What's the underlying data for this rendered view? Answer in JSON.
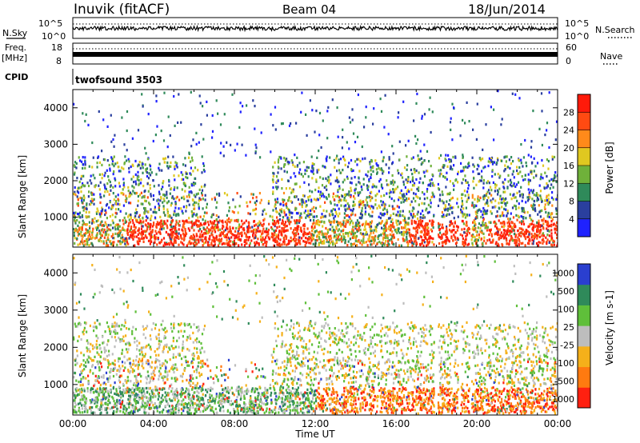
{
  "header": {
    "station": "Inuvik (fitACF)",
    "beam": "Beam 04",
    "date": "18/Jun/2014"
  },
  "strip_labels": {
    "nsky": "N.Sky",
    "nsearch": "N.Search",
    "freq_top": "Freq.",
    "freq_unit": "[MHz]",
    "nave": "Nave",
    "cpid": "CPID",
    "cpid_value": "twofsound 3503",
    "noise_ticks_left": [
      "10^5",
      "10^0"
    ],
    "noise_ticks_right": [
      "10^5",
      "10^0"
    ],
    "freq_ticks_left": [
      "18",
      "8"
    ],
    "nave_ticks_right": [
      "60",
      "0"
    ]
  },
  "colors": {
    "power_scale": [
      "#1f22ff",
      "#2a3f9e",
      "#2f8a5a",
      "#6fb13a",
      "#e0c820",
      "#ff8a1a",
      "#ff4a12",
      "#ff1a0a"
    ],
    "velocity_scale": [
      "#2a3fcf",
      "#2f8a5a",
      "#5fbf3a",
      "#bdbdbd",
      "#f5b01a",
      "#ff7a10",
      "#ff2010"
    ]
  },
  "chart_data": [
    {
      "type": "heatmap",
      "panel": "power",
      "xlabel": "",
      "ylabel": "Slant Range [km]",
      "xlim": [
        "00:00",
        "00:00"
      ],
      "ylim": [
        180,
        4500
      ],
      "x_tick_labels": [
        "00:00",
        "04:00",
        "08:00",
        "12:00",
        "16:00",
        "20:00",
        "00:00"
      ],
      "y_tick_labels": [
        "1000",
        "2000",
        "3000",
        "4000"
      ],
      "colorbar": {
        "label": "Power [dB]",
        "ticks": [
          "4",
          "8",
          "12",
          "16",
          "20",
          "24",
          "28"
        ],
        "range": [
          0,
          30
        ]
      }
    },
    {
      "type": "heatmap",
      "panel": "velocity",
      "xlabel": "Time UT",
      "ylabel": "Slant Range [km]",
      "xlim": [
        "00:00",
        "00:00"
      ],
      "ylim": [
        180,
        4500
      ],
      "x_tick_labels": [
        "00:00",
        "04:00",
        "08:00",
        "12:00",
        "16:00",
        "20:00",
        "00:00"
      ],
      "y_tick_labels": [
        "1000",
        "2000",
        "3000",
        "4000"
      ],
      "colorbar": {
        "label": "Velocity [m s-1]",
        "ticks": [
          "1000",
          "500",
          "100",
          "25",
          "-25",
          "-100",
          "-500",
          "-1000"
        ]
      }
    }
  ]
}
